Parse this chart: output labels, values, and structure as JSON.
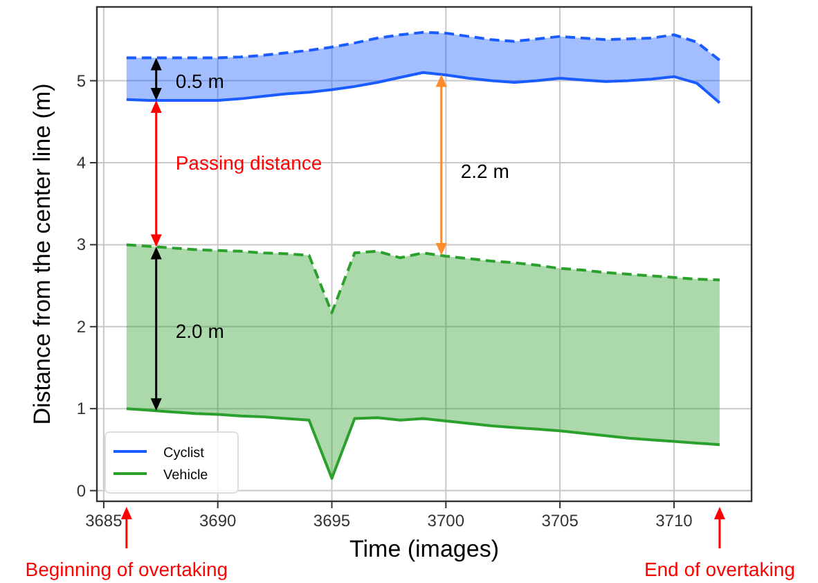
{
  "chart_data": {
    "type": "line",
    "xlabel": "Time (images)",
    "ylabel": "Distance from the center line (m)",
    "x": [
      3686,
      3687,
      3688,
      3689,
      3690,
      3691,
      3692,
      3693,
      3694,
      3695,
      3696,
      3697,
      3698,
      3699,
      3700,
      3701,
      3702,
      3703,
      3704,
      3705,
      3706,
      3707,
      3708,
      3709,
      3710,
      3711,
      3712
    ],
    "series": [
      {
        "name": "Cyclist",
        "color": "#1a5cff",
        "values": [
          4.77,
          4.76,
          4.76,
          4.76,
          4.76,
          4.78,
          4.81,
          4.84,
          4.86,
          4.89,
          4.93,
          4.98,
          5.04,
          5.1,
          5.07,
          5.03,
          5.0,
          4.98,
          5.0,
          5.03,
          5.01,
          4.99,
          5.0,
          5.02,
          5.05,
          4.97,
          4.73
        ],
        "lower": [
          4.77,
          4.76,
          4.76,
          4.76,
          4.76,
          4.78,
          4.81,
          4.84,
          4.86,
          4.89,
          4.93,
          4.98,
          5.04,
          5.1,
          5.07,
          5.03,
          5.0,
          4.98,
          5.0,
          5.03,
          5.01,
          4.99,
          5.0,
          5.02,
          5.05,
          4.97,
          4.73
        ],
        "upper": [
          5.28,
          5.28,
          5.28,
          5.28,
          5.28,
          5.29,
          5.31,
          5.34,
          5.37,
          5.41,
          5.46,
          5.52,
          5.56,
          5.59,
          5.58,
          5.54,
          5.5,
          5.48,
          5.51,
          5.54,
          5.52,
          5.5,
          5.51,
          5.52,
          5.56,
          5.47,
          5.25
        ]
      },
      {
        "color": "#1a5cff",
        "line_style": "dashed",
        "values": [
          5.28,
          5.28,
          5.28,
          5.28,
          5.28,
          5.29,
          5.31,
          5.34,
          5.37,
          5.41,
          5.46,
          5.52,
          5.56,
          5.59,
          5.58,
          5.54,
          5.5,
          5.48,
          5.51,
          5.54,
          5.52,
          5.5,
          5.51,
          5.52,
          5.56,
          5.47,
          5.25
        ]
      },
      {
        "name": "Vehicle",
        "color": "#2ca02c",
        "values": [
          1.0,
          0.98,
          0.96,
          0.94,
          0.93,
          0.91,
          0.9,
          0.88,
          0.86,
          0.15,
          0.88,
          0.89,
          0.86,
          0.88,
          0.85,
          0.82,
          0.79,
          0.77,
          0.75,
          0.73,
          0.7,
          0.67,
          0.64,
          0.62,
          0.6,
          0.58,
          0.56
        ],
        "lower": [
          1.0,
          0.98,
          0.96,
          0.94,
          0.93,
          0.91,
          0.9,
          0.88,
          0.86,
          0.15,
          0.88,
          0.89,
          0.86,
          0.88,
          0.85,
          0.82,
          0.79,
          0.77,
          0.75,
          0.73,
          0.7,
          0.67,
          0.64,
          0.62,
          0.6,
          0.58,
          0.56
        ],
        "upper": [
          3.0,
          2.98,
          2.96,
          2.94,
          2.93,
          2.92,
          2.9,
          2.89,
          2.87,
          2.17,
          2.9,
          2.92,
          2.84,
          2.9,
          2.86,
          2.83,
          2.8,
          2.78,
          2.75,
          2.71,
          2.69,
          2.66,
          2.64,
          2.62,
          2.6,
          2.58,
          2.57
        ]
      },
      {
        "color": "#2ca02c",
        "line_style": "dashed",
        "values": [
          3.0,
          2.98,
          2.96,
          2.94,
          2.93,
          2.92,
          2.9,
          2.89,
          2.87,
          2.17,
          2.9,
          2.92,
          2.84,
          2.9,
          2.86,
          2.83,
          2.8,
          2.78,
          2.75,
          2.71,
          2.69,
          2.66,
          2.64,
          2.62,
          2.6,
          2.58,
          2.57
        ]
      }
    ],
    "xlim": [
      3684.7,
      3713.4
    ],
    "xticks": [
      3685,
      3690,
      3695,
      3700,
      3705,
      3710
    ],
    "ylim": [
      -0.13,
      5.9
    ],
    "yticks": [
      0,
      1,
      2,
      3,
      4,
      5
    ],
    "grid": true,
    "legend": "bottom left",
    "marker": "none",
    "line_style": "solid",
    "annotations": [
      "0.5 m",
      "Passing distance",
      "2.2 m",
      "2.0 m",
      "Beginning of overtaking",
      "End of overtaking"
    ]
  }
}
